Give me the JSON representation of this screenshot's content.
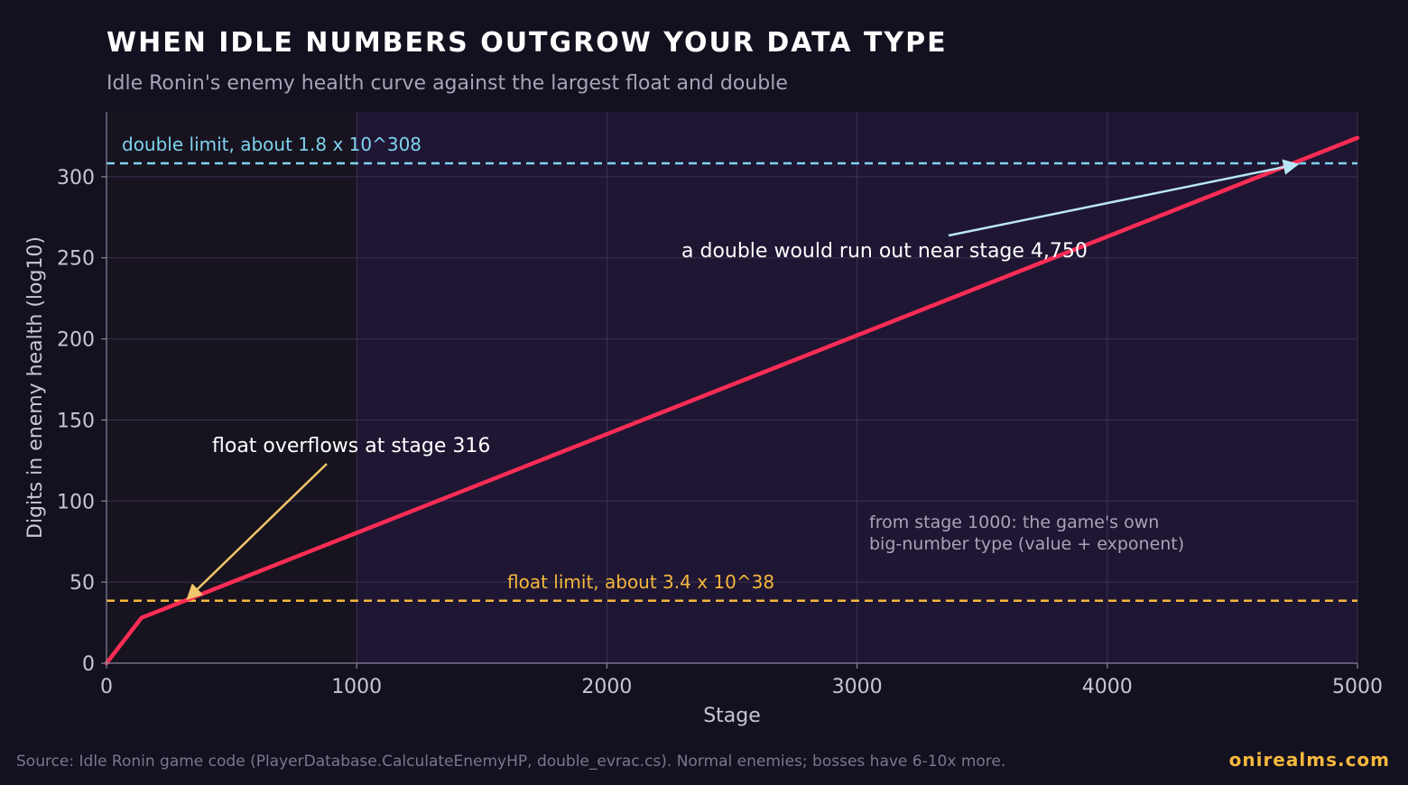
{
  "header": {
    "title": "WHEN IDLE NUMBERS OUTGROW YOUR DATA TYPE",
    "subtitle": "Idle Ronin's enemy health curve against the largest float and double"
  },
  "footer": {
    "source": "Source: Idle Ronin game code (PlayerDatabase.CalculateEnemyHP, double_evrac.cs). Normal enemies; bosses have 6-10x more.",
    "brand": "onirealms.com"
  },
  "colors": {
    "background": "#13101f",
    "plot_left_region": "#17131f",
    "plot_right_region": "#1f1633",
    "curve": "#ff2d55",
    "double_line": "#7fd3f0",
    "float_line": "#f5b83d",
    "double_arrow": "#b9e6f7",
    "float_arrow": "#f2c56a"
  },
  "chart_data": {
    "type": "line",
    "xlabel": "Stage",
    "ylabel": "Digits in enemy health (log10)",
    "xlim": [
      0,
      5000
    ],
    "ylim": [
      0,
      340
    ],
    "xticks": [
      0,
      1000,
      2000,
      3000,
      4000,
      5000
    ],
    "xtick_labels": [
      "0",
      "1000",
      "2000",
      "3000",
      "4000",
      "5000"
    ],
    "yticks": [
      0,
      50,
      100,
      150,
      200,
      250,
      300
    ],
    "ytick_labels": [
      "0",
      "50",
      "100",
      "150",
      "200",
      "250",
      "300"
    ],
    "grid": true,
    "series": [
      {
        "x": [
          0,
          140,
          5000
        ],
        "y": [
          0,
          28,
          324
        ]
      }
    ],
    "reference_lines": [
      {
        "y": 308.26,
        "label": "double limit, about 1.8 x 10^308",
        "style": "dashed"
      },
      {
        "y": 38.53,
        "label": "float limit, about 3.4 x 10^38",
        "style": "dashed"
      }
    ],
    "shaded_region": {
      "x_from": 1000,
      "x_to": 5000,
      "label": "from stage 1000: the game's own big-number type (value + exponent)"
    },
    "annotations": [
      {
        "text": "float overflows at stage 316",
        "x": 316,
        "y": 38.53
      },
      {
        "text": "a double would run out near stage 4,750",
        "x": 4750,
        "y": 308.26
      }
    ],
    "region_note_lines": [
      "from stage 1000: the game's own",
      "big-number type (value + exponent)"
    ]
  }
}
